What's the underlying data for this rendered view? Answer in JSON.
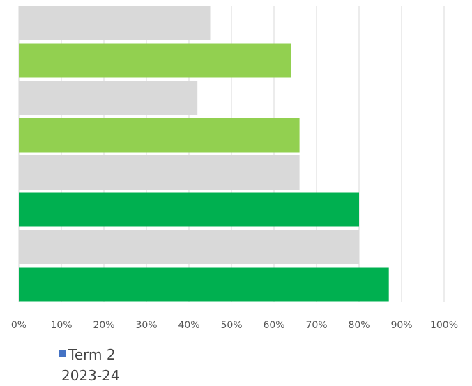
{
  "chart_data": {
    "type": "bar",
    "orientation": "horizontal",
    "x_ticks": [
      "0%",
      "10%",
      "20%",
      "30%",
      "40%",
      "50%",
      "60%",
      "70%",
      "80%",
      "90%",
      "100%"
    ],
    "xlim": [
      0,
      100
    ],
    "grid": true,
    "bars": [
      {
        "value": 45,
        "color": "#d9d9d9"
      },
      {
        "value": 64,
        "color": "#92d050"
      },
      {
        "value": 42,
        "color": "#d9d9d9"
      },
      {
        "value": 66,
        "color": "#92d050"
      },
      {
        "value": 66,
        "color": "#d9d9d9"
      },
      {
        "value": 80,
        "color": "#00b050"
      },
      {
        "value": 80,
        "color": "#d9d9d9"
      },
      {
        "value": 87,
        "color": "#00b050"
      }
    ],
    "legend": {
      "placement": "bottom-left",
      "entries": [
        {
          "label_line1": "Term 2",
          "label_line2": "2023-24",
          "color": "#4472c4"
        }
      ]
    }
  }
}
